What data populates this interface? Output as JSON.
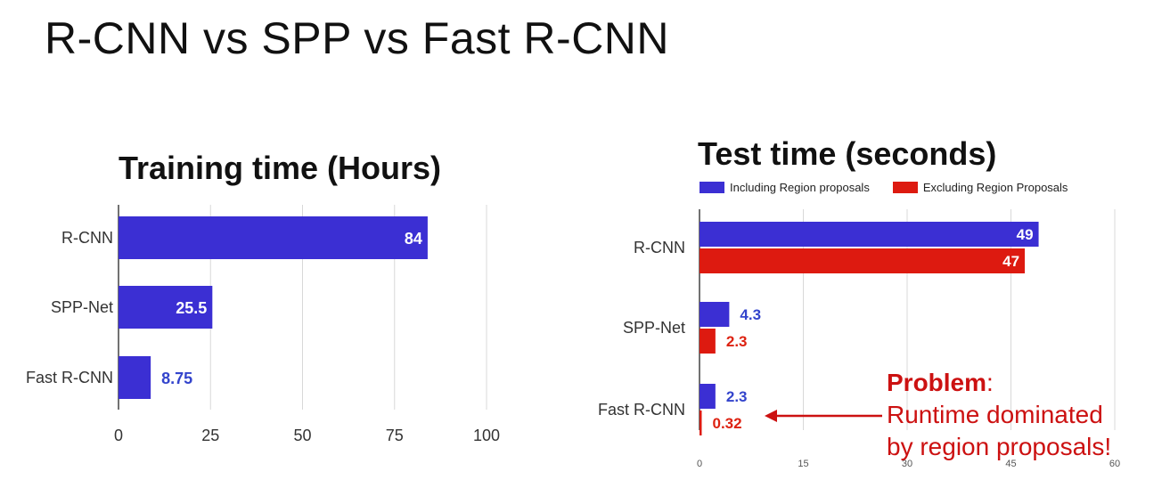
{
  "slide": {
    "title": "R-CNN vs SPP vs Fast R-CNN"
  },
  "annotation": {
    "head": "Problem",
    "head_suffix": ":",
    "line1": "Runtime dominated",
    "line2": "by region proposals!"
  },
  "colors": {
    "blue": "#3b2fd3",
    "red": "#dd1a10",
    "label_blue": "#3344cc",
    "label_red": "#dd2211",
    "grid": "#d8d8d8",
    "annotation": "#cc1111"
  },
  "chart_data": [
    {
      "id": "training",
      "type": "bar",
      "orientation": "horizontal",
      "title": "Training time (Hours)",
      "categories": [
        "R-CNN",
        "SPP-Net",
        "Fast R-CNN"
      ],
      "series": [
        {
          "values": [
            84,
            25.5,
            8.75
          ],
          "labels": [
            "84",
            "25.5",
            "8.75"
          ],
          "color": "#3b2fd3"
        }
      ],
      "xlim": [
        0,
        100
      ],
      "xticks": [
        "0",
        "25",
        "50",
        "75",
        "100"
      ],
      "grid": true
    },
    {
      "id": "test",
      "type": "bar",
      "orientation": "horizontal",
      "title": "Test time (seconds)",
      "categories": [
        "R-CNN",
        "SPP-Net",
        "Fast R-CNN"
      ],
      "series": [
        {
          "name": "Including Region proposals",
          "values": [
            49,
            4.3,
            2.3
          ],
          "labels": [
            "49",
            "4.3",
            "2.3"
          ],
          "color": "#3b2fd3"
        },
        {
          "name": "Excluding Region Proposals",
          "values": [
            47,
            2.3,
            0.32
          ],
          "labels": [
            "47",
            "2.3",
            "0.32"
          ],
          "color": "#dd1a10"
        }
      ],
      "xlim": [
        0,
        60
      ],
      "xticks": [
        "0",
        "15",
        "30",
        "45",
        "60"
      ],
      "grid": true,
      "legend": "top"
    }
  ]
}
